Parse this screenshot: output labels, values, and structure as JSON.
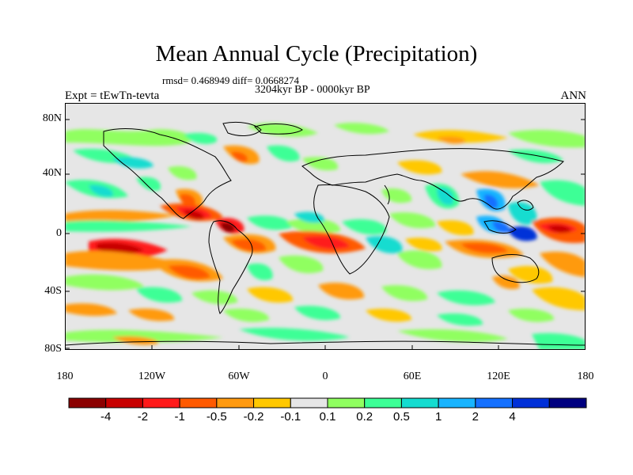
{
  "title": "Mean Annual Cycle (Precipitation)",
  "stats": "rmsd= 0.468949 diff= 0.0668274",
  "period": "3204kyr BP - 0000kyr BP",
  "experiment": "Expt = tEwTn-tevta",
  "season": "ANN",
  "map": {
    "lat_labels": [
      "80N",
      "40N",
      "0",
      "40S",
      "80S"
    ],
    "lon_labels": [
      "180",
      "120W",
      "60W",
      "0",
      "60E",
      "120E",
      "180"
    ],
    "background_color": "#e6e6e6"
  },
  "colorbar": {
    "colors": [
      "#8b0000",
      "#c80000",
      "#ff1a1a",
      "#ff5a00",
      "#ff9a10",
      "#ffc800",
      "#e6e6e6",
      "#90ff60",
      "#3cff96",
      "#14dcd0",
      "#18b4ff",
      "#1470ff",
      "#0030d8",
      "#000080"
    ],
    "labels": [
      "-4",
      "-2",
      "-1",
      "-0.5",
      "-0.2",
      "-0.1",
      "0.1",
      "0.2",
      "0.5",
      "1",
      "2",
      "4"
    ]
  }
}
